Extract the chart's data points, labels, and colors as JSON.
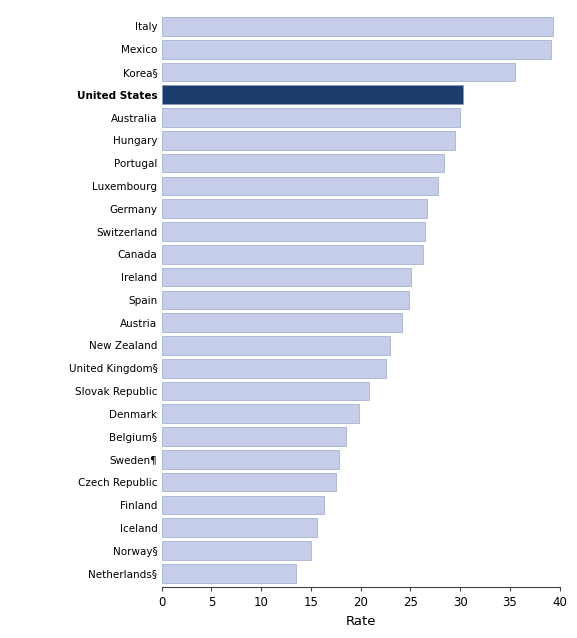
{
  "countries": [
    "Italy",
    "Mexico",
    "Korea§",
    "United States",
    "Australia",
    "Hungary",
    "Portugal",
    "Luxembourg",
    "Germany",
    "Switzerland",
    "Canada",
    "Ireland",
    "Spain",
    "Austria",
    "New Zealand",
    "United Kingdom§",
    "Slovak Republic",
    "Denmark",
    "Belgium§",
    "Sweden¶",
    "Czech Republic",
    "Finland",
    "Iceland",
    "Norway§",
    "Netherlands§"
  ],
  "values": [
    39.3,
    39.1,
    35.5,
    30.3,
    30.0,
    29.5,
    28.4,
    27.8,
    26.7,
    26.5,
    26.3,
    25.1,
    24.9,
    24.2,
    23.0,
    22.5,
    20.8,
    19.8,
    18.5,
    17.8,
    17.5,
    16.3,
    15.6,
    15.0,
    13.5
  ],
  "bar_color_default": "#c5cde8",
  "bar_color_highlight": "#1a3d6e",
  "highlight_index": 3,
  "xlim": [
    0,
    40
  ],
  "xticks": [
    0,
    5,
    10,
    15,
    20,
    25,
    30,
    35,
    40
  ],
  "xlabel": "Rate",
  "background_color": "#ffffff",
  "bar_edge_color": "#8899bb",
  "bar_height": 0.82,
  "figwidth": 5.77,
  "figheight": 6.38,
  "dpi": 100,
  "label_fontsize": 7.5,
  "xlabel_fontsize": 9.5,
  "xtick_fontsize": 8.5
}
